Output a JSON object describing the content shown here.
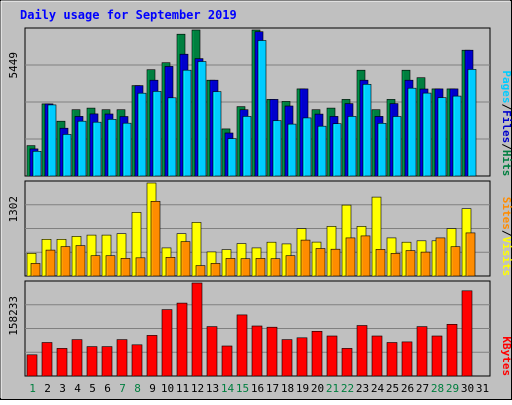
{
  "chart_data": {
    "type": "bar",
    "title": "Daily usage for September 2019",
    "days": [
      "1",
      "2",
      "3",
      "4",
      "5",
      "6",
      "7",
      "8",
      "9",
      "10",
      "11",
      "12",
      "13",
      "14",
      "15",
      "16",
      "17",
      "18",
      "19",
      "20",
      "21",
      "22",
      "23",
      "24",
      "25",
      "26",
      "27",
      "28",
      "29",
      "30",
      "31"
    ],
    "weekend_days": [
      1,
      7,
      8,
      14,
      15,
      21,
      22,
      28,
      29
    ],
    "colors": {
      "background": "#c0c0c0",
      "title": "#0000ff",
      "weekday_label": "#000000",
      "weekend_label": "#007f3f",
      "pages": "#00ccff",
      "files": "#0000cc",
      "hits": "#007f3f",
      "sites": "#ff8c00",
      "visits": "#ffff00",
      "kbytes": "#ff0000"
    },
    "panels": [
      {
        "max_label": "5449",
        "ylim": [
          0,
          5449
        ],
        "legend": [
          {
            "text": "Pages",
            "color": "#00ccff"
          },
          {
            "text": "/",
            "color": "#000000"
          },
          {
            "text": "Files",
            "color": "#0000cc"
          },
          {
            "text": "/",
            "color": "#000000"
          },
          {
            "text": "Hits",
            "color": "#007f3f"
          }
        ],
        "series": [
          {
            "name": "Hits",
            "color": "#007f3f",
            "values": [
              1135,
              2690,
              2046,
              2473,
              2535,
              2473,
              2473,
              3375,
              3969,
              4228,
              5294,
              5449,
              3576,
              1759,
              2591,
              5449,
              2860,
              2783,
              3251,
              2473,
              2535,
              2860,
              3948,
              2473,
              2860,
              3948,
              3669,
              3251,
              3251,
              4694,
              null
            ]
          },
          {
            "name": "Files",
            "color": "#0000cc",
            "values": [
              1011,
              2690,
              1783,
              2224,
              2319,
              2314,
              2220,
              3375,
              3577,
              4091,
              4547,
              4382,
              3576,
              1604,
              2475,
              5387,
              2860,
              2614,
              3251,
              2309,
              2225,
              2702,
              3576,
              2225,
              2702,
              3576,
              3248,
              3251,
              3251,
              4694,
              null
            ]
          },
          {
            "name": "Pages",
            "color": "#00ccff",
            "values": [
              923,
              2653,
              1551,
              2046,
              2007,
              2115,
              1969,
              3089,
              3157,
              2918,
              3948,
              4275,
              3151,
              1395,
              2224,
              5056,
              2069,
              1937,
              2167,
              1860,
              1953,
              2224,
              3421,
              1968,
              2220,
              3276,
              3094,
              2927,
              2983,
              3978,
              null
            ]
          }
        ]
      },
      {
        "max_label": "1302",
        "ylim": [
          0,
          1302
        ],
        "legend": [
          {
            "text": "Sites",
            "color": "#ff8c00"
          },
          {
            "text": "/",
            "color": "#000000"
          },
          {
            "text": "Visits",
            "color": "#ffff00"
          }
        ],
        "series": [
          {
            "name": "Visits",
            "color": "#ffff00",
            "values": [
              318,
              514,
              514,
              554,
              573,
              573,
              592,
              891,
              1302,
              393,
              592,
              750,
              338,
              370,
              453,
              393,
              473,
              450,
              663,
              474,
              695,
              993,
              695,
              1104,
              534,
              473,
              493,
              493,
              663,
              942,
              null
            ]
          },
          {
            "name": "Sites",
            "color": "#ff8c00",
            "values": [
              176,
              362,
              412,
              426,
              284,
              284,
              247,
              255,
              1046,
              262,
              481,
              146,
              176,
              247,
              242,
              247,
              242,
              284,
              503,
              385,
              375,
              534,
              562,
              373,
              316,
              355,
              334,
              534,
              410,
              604,
              null
            ]
          }
        ]
      },
      {
        "max_label": "158233",
        "ylim": [
          0,
          158233
        ],
        "legend": [
          {
            "text": "KBytes",
            "color": "#ff0000"
          }
        ],
        "series": [
          {
            "name": "KBytes",
            "color": "#ff0000",
            "values": [
              36130,
              57000,
              47000,
              62000,
              50000,
              50000,
              62000,
              53000,
              69000,
              113000,
              124000,
              158233,
              84000,
              51000,
              104000,
              85000,
              83000,
              62000,
              65000,
              76000,
              68000,
              47000,
              86000,
              68000,
              57000,
              58000,
              84000,
              68000,
              88000,
              145000,
              null
            ]
          }
        ]
      }
    ]
  }
}
